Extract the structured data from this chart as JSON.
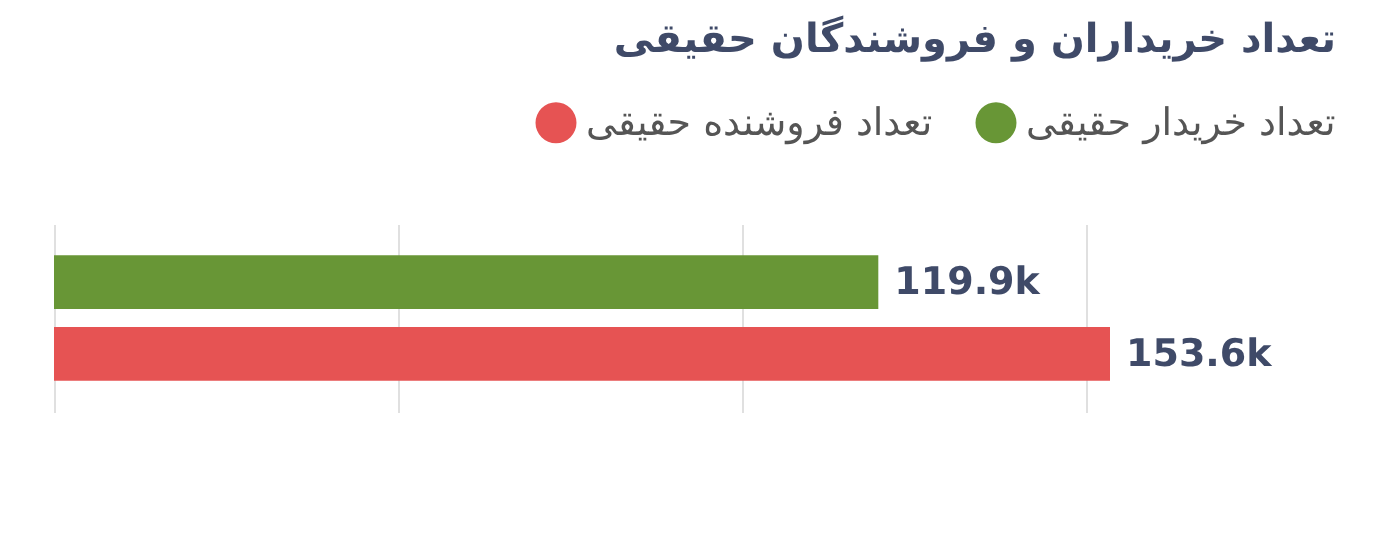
{
  "chart_data": {
    "type": "bar",
    "orientation": "horizontal",
    "title": "تعداد خریداران و فروشندگان حقیقی",
    "categories": [
      null
    ],
    "series": [
      {
        "name": "تعداد خریدار حقیقی",
        "color": "#689636",
        "values": [
          119900
        ],
        "value_labels": [
          "119.9k"
        ]
      },
      {
        "name": "تعداد فروشنده حقیقی",
        "color": "#e65353",
        "values": [
          153600
        ],
        "value_labels": [
          "153.6k"
        ]
      }
    ],
    "xticks": [
      {
        "value": 0,
        "label": null
      },
      {
        "value": 50000,
        "label": null
      },
      {
        "value": 100000,
        "label": null
      },
      {
        "value": 150000,
        "label": null
      }
    ],
    "grid": "x",
    "legend": "top right"
  }
}
